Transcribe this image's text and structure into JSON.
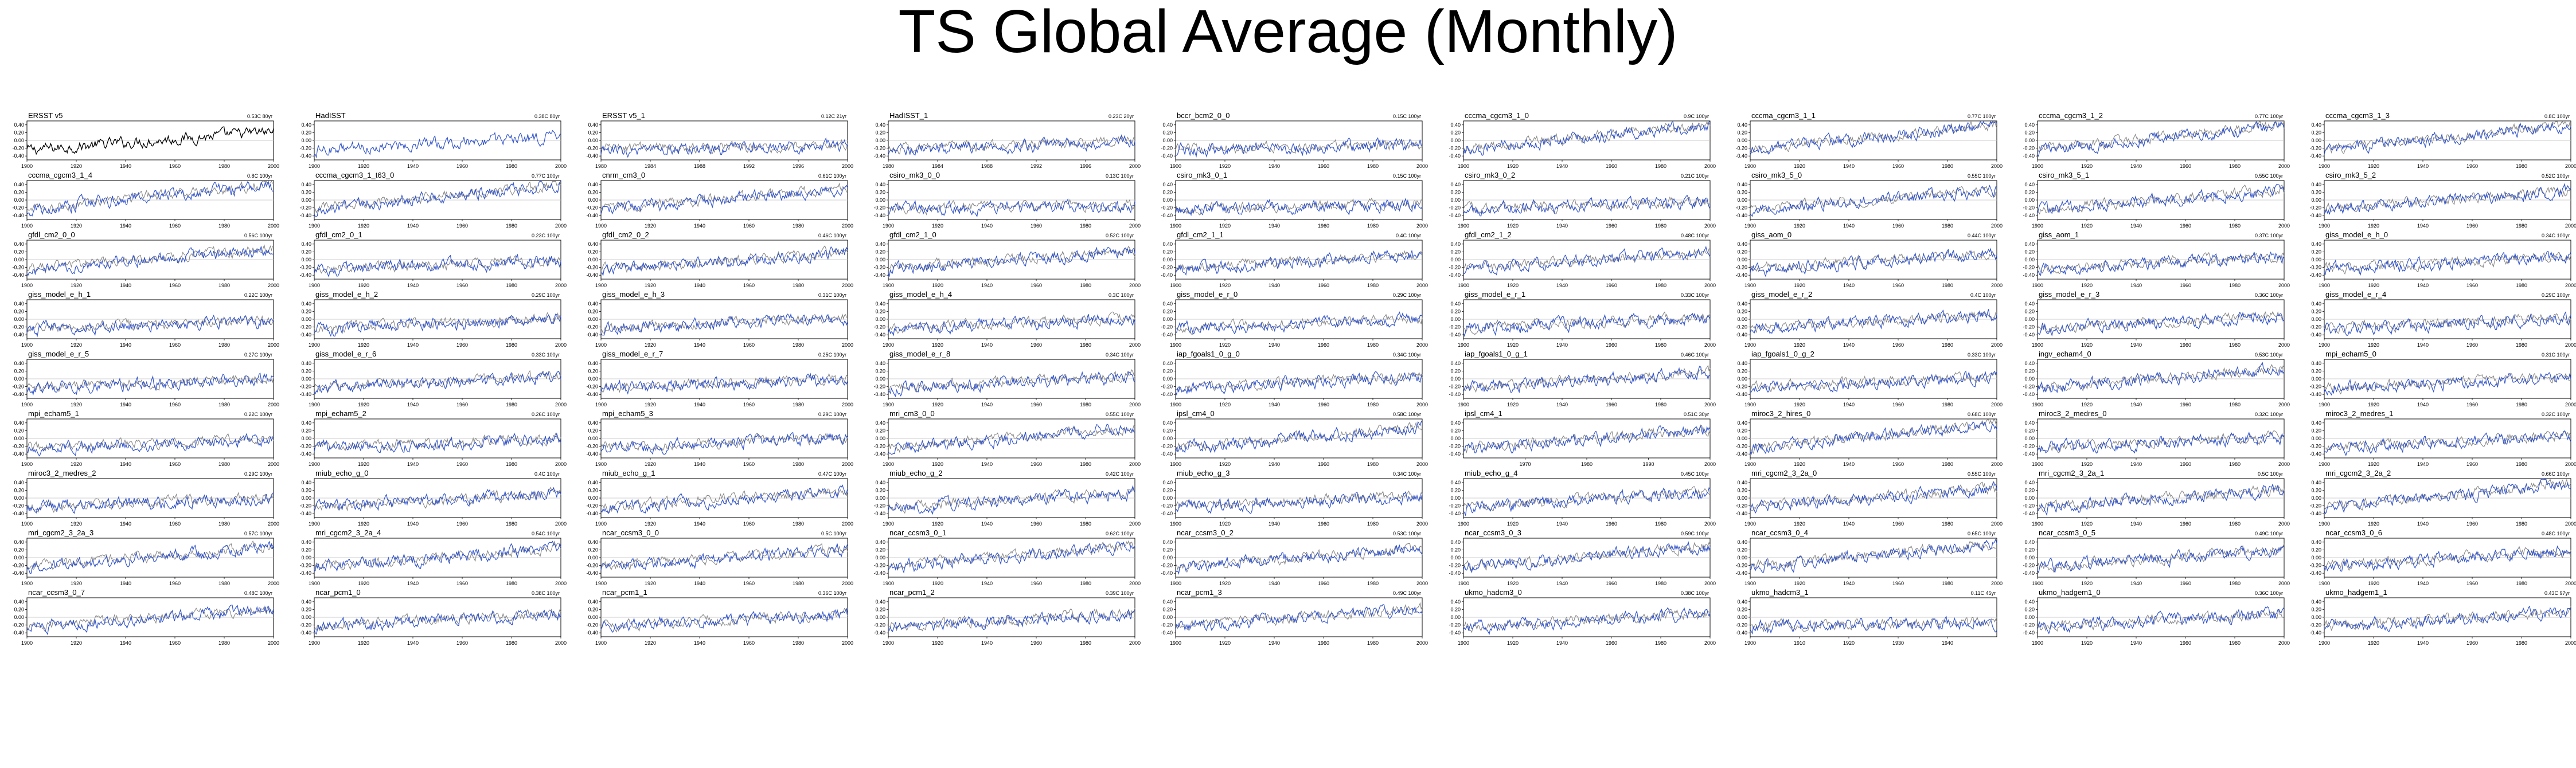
{
  "page": {
    "title": "TS Global Average (Monthly)"
  },
  "colors": {
    "model": "#3355cc",
    "obs": "#888888",
    "obs_primary": "#000000",
    "frame": "#000000"
  },
  "chart_data": {
    "type": "line",
    "description_of_panels": "Small multiples: global average surface temperature anomaly time series per dataset/model run; model (blue) overlaid on observations (gray).",
    "ylim": [
      -0.5,
      0.5
    ],
    "yticks": [
      "0.40",
      "0.20",
      "0.00",
      "-0.20",
      "-0.40"
    ],
    "xticks_standard": [
      "1900",
      "1920",
      "1940",
      "1960",
      "1980",
      "2000"
    ],
    "panels": [
      {
        "label": "ERSST v5",
        "trend": "0.53C 80yr",
        "x_range": [
          1900,
          2000
        ],
        "style": "obs"
      },
      {
        "label": "HadISST",
        "trend": "0.38C 80yr",
        "x_range": [
          1900,
          2000
        ],
        "style": "model"
      },
      {
        "label": "ERSST v5_1",
        "trend": "0.12C 21yr",
        "x_range": [
          1980,
          2000
        ],
        "xticks": [
          "1980",
          "1984",
          "1988",
          "1992",
          "1996",
          "2000"
        ],
        "style": "both"
      },
      {
        "label": "HadISST_1",
        "trend": "0.23C 20yr",
        "x_range": [
          1980,
          2000
        ],
        "xticks": [
          "1980",
          "1984",
          "1988",
          "1992",
          "1996",
          "2000"
        ],
        "style": "both"
      },
      {
        "label": "bccr_bcm2_0_0",
        "trend": "0.15C 100yr",
        "x_range": [
          1900,
          2000
        ],
        "style": "both"
      },
      {
        "label": "cccma_cgcm3_1_0",
        "trend": "0.9C 100yr",
        "x_range": [
          1900,
          2000
        ],
        "style": "both"
      },
      {
        "label": "cccma_cgcm3_1_1",
        "trend": "0.77C 100yr",
        "x_range": [
          1900,
          2000
        ],
        "style": "both"
      },
      {
        "label": "cccma_cgcm3_1_2",
        "trend": "0.77C 100yr",
        "x_range": [
          1900,
          2000
        ],
        "style": "both"
      },
      {
        "label": "cccma_cgcm3_1_3",
        "trend": "0.8C 100yr",
        "x_range": [
          1900,
          2000
        ],
        "style": "both"
      },
      {
        "label": "cccma_cgcm3_1_4",
        "trend": "0.8C 100yr",
        "x_range": [
          1900,
          2000
        ],
        "style": "both"
      },
      {
        "label": "cccma_cgcm3_1_t63_0",
        "trend": "0.77C 100yr",
        "x_range": [
          1900,
          2000
        ],
        "style": "both"
      },
      {
        "label": "cnrm_cm3_0",
        "trend": "0.61C 100yr",
        "x_range": [
          1900,
          2000
        ],
        "style": "both"
      },
      {
        "label": "csiro_mk3_0_0",
        "trend": "0.13C 100yr",
        "x_range": [
          1900,
          2000
        ],
        "style": "both"
      },
      {
        "label": "csiro_mk3_0_1",
        "trend": "0.15C 100yr",
        "x_range": [
          1900,
          2000
        ],
        "style": "both"
      },
      {
        "label": "csiro_mk3_0_2",
        "trend": "0.21C 100yr",
        "x_range": [
          1900,
          2000
        ],
        "style": "both"
      },
      {
        "label": "csiro_mk3_5_0",
        "trend": "0.55C 100yr",
        "x_range": [
          1900,
          2000
        ],
        "style": "both"
      },
      {
        "label": "csiro_mk3_5_1",
        "trend": "0.55C 100yr",
        "x_range": [
          1900,
          2000
        ],
        "style": "both"
      },
      {
        "label": "csiro_mk3_5_2",
        "trend": "0.52C 100yr",
        "x_range": [
          1900,
          2000
        ],
        "style": "both"
      },
      {
        "label": "gfdl_cm2_0_0",
        "trend": "0.56C 100yr",
        "x_range": [
          1900,
          2000
        ],
        "style": "both"
      },
      {
        "label": "gfdl_cm2_0_1",
        "trend": "0.23C 100yr",
        "x_range": [
          1900,
          2000
        ],
        "style": "both"
      },
      {
        "label": "gfdl_cm2_0_2",
        "trend": "0.46C 100yr",
        "x_range": [
          1900,
          2000
        ],
        "style": "both"
      },
      {
        "label": "gfdl_cm2_1_0",
        "trend": "0.52C 100yr",
        "x_range": [
          1900,
          2000
        ],
        "style": "both"
      },
      {
        "label": "gfdl_cm2_1_1",
        "trend": "0.4C 100yr",
        "x_range": [
          1900,
          2000
        ],
        "style": "both"
      },
      {
        "label": "gfdl_cm2_1_2",
        "trend": "0.48C 100yr",
        "x_range": [
          1900,
          2000
        ],
        "style": "both"
      },
      {
        "label": "giss_aom_0",
        "trend": "0.44C 100yr",
        "x_range": [
          1900,
          2000
        ],
        "style": "both"
      },
      {
        "label": "giss_aom_1",
        "trend": "0.37C 100yr",
        "x_range": [
          1900,
          2000
        ],
        "style": "both"
      },
      {
        "label": "giss_model_e_h_0",
        "trend": "0.34C 100yr",
        "x_range": [
          1900,
          2000
        ],
        "style": "both"
      },
      {
        "label": "giss_model_e_h_1",
        "trend": "0.22C 100yr",
        "x_range": [
          1900,
          2000
        ],
        "style": "both"
      },
      {
        "label": "giss_model_e_h_2",
        "trend": "0.29C 100yr",
        "x_range": [
          1900,
          2000
        ],
        "style": "both"
      },
      {
        "label": "giss_model_e_h_3",
        "trend": "0.31C 100yr",
        "x_range": [
          1900,
          2000
        ],
        "style": "both"
      },
      {
        "label": "giss_model_e_h_4",
        "trend": "0.3C 100yr",
        "x_range": [
          1900,
          2000
        ],
        "style": "both"
      },
      {
        "label": "giss_model_e_r_0",
        "trend": "0.29C 100yr",
        "x_range": [
          1900,
          2000
        ],
        "style": "both"
      },
      {
        "label": "giss_model_e_r_1",
        "trend": "0.33C 100yr",
        "x_range": [
          1900,
          2000
        ],
        "style": "both"
      },
      {
        "label": "giss_model_e_r_2",
        "trend": "0.4C 100yr",
        "x_range": [
          1900,
          2000
        ],
        "style": "both"
      },
      {
        "label": "giss_model_e_r_3",
        "trend": "0.36C 100yr",
        "x_range": [
          1900,
          2000
        ],
        "style": "both"
      },
      {
        "label": "giss_model_e_r_4",
        "trend": "0.29C 100yr",
        "x_range": [
          1900,
          2000
        ],
        "style": "both"
      },
      {
        "label": "giss_model_e_r_5",
        "trend": "0.27C 100yr",
        "x_range": [
          1900,
          2000
        ],
        "style": "both"
      },
      {
        "label": "giss_model_e_r_6",
        "trend": "0.33C 100yr",
        "x_range": [
          1900,
          2000
        ],
        "style": "both"
      },
      {
        "label": "giss_model_e_r_7",
        "trend": "0.25C 100yr",
        "x_range": [
          1900,
          2000
        ],
        "style": "both"
      },
      {
        "label": "giss_model_e_r_8",
        "trend": "0.34C 100yr",
        "x_range": [
          1900,
          2000
        ],
        "style": "both"
      },
      {
        "label": "iap_fgoals1_0_g_0",
        "trend": "0.34C 100yr",
        "x_range": [
          1900,
          2000
        ],
        "style": "both"
      },
      {
        "label": "iap_fgoals1_0_g_1",
        "trend": "0.46C 100yr",
        "x_range": [
          1900,
          2000
        ],
        "style": "both"
      },
      {
        "label": "iap_fgoals1_0_g_2",
        "trend": "0.33C 100yr",
        "x_range": [
          1900,
          2000
        ],
        "style": "both"
      },
      {
        "label": "ingv_echam4_0",
        "trend": "0.53C 100yr",
        "x_range": [
          1900,
          2000
        ],
        "style": "both"
      },
      {
        "label": "mpi_echam5_0",
        "trend": "0.31C 100yr",
        "x_range": [
          1900,
          2000
        ],
        "style": "both"
      },
      {
        "label": "mpi_echam5_1",
        "trend": "0.22C 100yr",
        "x_range": [
          1900,
          2000
        ],
        "style": "both"
      },
      {
        "label": "mpi_echam5_2",
        "trend": "0.26C 100yr",
        "x_range": [
          1900,
          2000
        ],
        "style": "both"
      },
      {
        "label": "mpi_echam5_3",
        "trend": "0.29C 100yr",
        "x_range": [
          1900,
          2000
        ],
        "style": "both"
      },
      {
        "label": "mri_cm3_0_0",
        "trend": "0.55C 100yr",
        "x_range": [
          1900,
          2000
        ],
        "style": "both"
      },
      {
        "label": "ipsl_cm4_0",
        "trend": "0.58C 100yr",
        "x_range": [
          1900,
          2000
        ],
        "style": "both"
      },
      {
        "label": "ipsl_cm4_1",
        "trend": "0.51C 30yr",
        "x_range": [
          1960,
          2000
        ],
        "xticks": [
          "1970",
          "1980",
          "1990",
          "2000"
        ],
        "style": "both"
      },
      {
        "label": "miroc3_2_hires_0",
        "trend": "0.68C 100yr",
        "x_range": [
          1900,
          2000
        ],
        "style": "both"
      },
      {
        "label": "miroc3_2_medres_0",
        "trend": "0.32C 100yr",
        "x_range": [
          1900,
          2000
        ],
        "style": "both"
      },
      {
        "label": "miroc3_2_medres_1",
        "trend": "0.32C 100yr",
        "x_range": [
          1900,
          2000
        ],
        "style": "both"
      },
      {
        "label": "miroc3_2_medres_2",
        "trend": "0.29C 100yr",
        "x_range": [
          1900,
          2000
        ],
        "style": "both"
      },
      {
        "label": "miub_echo_g_0",
        "trend": "0.4C 100yr",
        "x_range": [
          1900,
          2000
        ],
        "style": "both"
      },
      {
        "label": "miub_echo_g_1",
        "trend": "0.47C 100yr",
        "x_range": [
          1900,
          2000
        ],
        "style": "both"
      },
      {
        "label": "miub_echo_g_2",
        "trend": "0.42C 100yr",
        "x_range": [
          1900,
          2000
        ],
        "style": "both"
      },
      {
        "label": "miub_echo_g_3",
        "trend": "0.34C 100yr",
        "x_range": [
          1900,
          2000
        ],
        "style": "both"
      },
      {
        "label": "miub_echo_g_4",
        "trend": "0.45C 100yr",
        "x_range": [
          1900,
          2000
        ],
        "style": "both"
      },
      {
        "label": "mri_cgcm2_3_2a_0",
        "trend": "0.55C 100yr",
        "x_range": [
          1900,
          2000
        ],
        "style": "both"
      },
      {
        "label": "mri_cgcm2_3_2a_1",
        "trend": "0.5C 100yr",
        "x_range": [
          1900,
          2000
        ],
        "style": "both"
      },
      {
        "label": "mri_cgcm2_3_2a_2",
        "trend": "0.66C 100yr",
        "x_range": [
          1900,
          2000
        ],
        "style": "both"
      },
      {
        "label": "mri_cgcm2_3_2a_3",
        "trend": "0.57C 100yr",
        "x_range": [
          1900,
          2000
        ],
        "style": "both"
      },
      {
        "label": "mri_cgcm2_3_2a_4",
        "trend": "0.54C 100yr",
        "x_range": [
          1900,
          2000
        ],
        "style": "both"
      },
      {
        "label": "ncar_ccsm3_0_0",
        "trend": "0.5C 100yr",
        "x_range": [
          1900,
          2000
        ],
        "style": "both"
      },
      {
        "label": "ncar_ccsm3_0_1",
        "trend": "0.62C 100yr",
        "x_range": [
          1900,
          2000
        ],
        "style": "both"
      },
      {
        "label": "ncar_ccsm3_0_2",
        "trend": "0.53C 100yr",
        "x_range": [
          1900,
          2000
        ],
        "style": "both"
      },
      {
        "label": "ncar_ccsm3_0_3",
        "trend": "0.59C 100yr",
        "x_range": [
          1900,
          2000
        ],
        "style": "both"
      },
      {
        "label": "ncar_ccsm3_0_4",
        "trend": "0.65C 100yr",
        "x_range": [
          1900,
          2000
        ],
        "style": "both"
      },
      {
        "label": "ncar_ccsm3_0_5",
        "trend": "0.49C 100yr",
        "x_range": [
          1900,
          2000
        ],
        "style": "both"
      },
      {
        "label": "ncar_ccsm3_0_6",
        "trend": "0.48C 100yr",
        "x_range": [
          1900,
          2000
        ],
        "style": "both"
      },
      {
        "label": "ncar_ccsm3_0_7",
        "trend": "0.48C 100yr",
        "x_range": [
          1900,
          2000
        ],
        "style": "both"
      },
      {
        "label": "ncar_pcm1_0",
        "trend": "0.38C 100yr",
        "x_range": [
          1900,
          2000
        ],
        "style": "both"
      },
      {
        "label": "ncar_pcm1_1",
        "trend": "0.36C 100yr",
        "x_range": [
          1900,
          2000
        ],
        "style": "both"
      },
      {
        "label": "ncar_pcm1_2",
        "trend": "0.39C 100yr",
        "x_range": [
          1900,
          2000
        ],
        "style": "both"
      },
      {
        "label": "ncar_pcm1_3",
        "trend": "0.49C 100yr",
        "x_range": [
          1900,
          2000
        ],
        "style": "both"
      },
      {
        "label": "ukmo_hadcm3_0",
        "trend": "0.38C 100yr",
        "x_range": [
          1900,
          2000
        ],
        "style": "both"
      },
      {
        "label": "ukmo_hadcm3_1",
        "trend": "0.11C 45yr",
        "x_range": [
          1900,
          1950
        ],
        "xticks": [
          "1900",
          "1910",
          "1920",
          "1930",
          "1940"
        ],
        "style": "both"
      },
      {
        "label": "ukmo_hadgem1_0",
        "trend": "0.36C 100yr",
        "x_range": [
          1900,
          2000
        ],
        "style": "both"
      },
      {
        "label": "ukmo_hadgem1_1",
        "trend": "0.43C 97yr",
        "x_range": [
          1900,
          2000
        ],
        "style": "both"
      }
    ]
  }
}
